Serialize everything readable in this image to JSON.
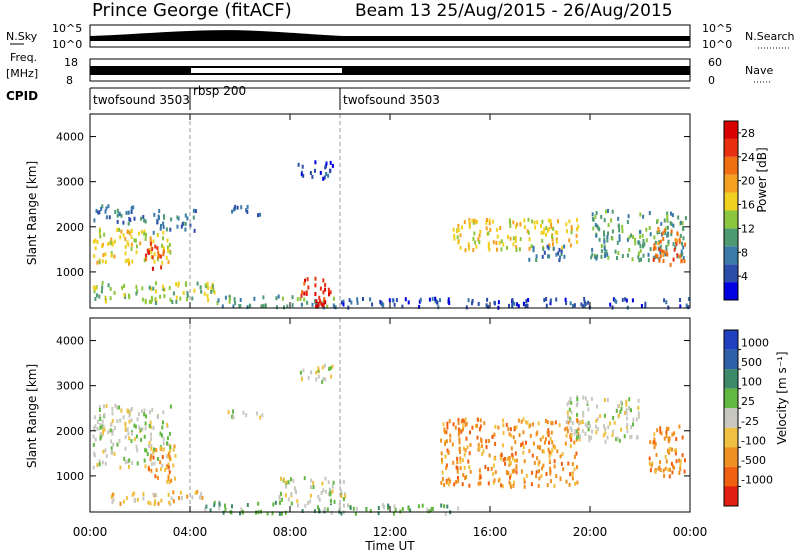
{
  "header": {
    "station": "Prince George (fitACF)",
    "beam_info": "Beam 13 25/Aug/2015 - 26/Aug/2015"
  },
  "panels": {
    "noise": {
      "left_label": "N.Sky",
      "right_label": "N.Search",
      "left_ticks": [
        "10^5",
        "10^0"
      ],
      "right_ticks": [
        "10^5",
        "10^0"
      ]
    },
    "freq": {
      "left_label_1": "Freq.",
      "left_label_2": "[MHz]",
      "right_label": "Nave",
      "left_ticks": [
        "18",
        "8"
      ],
      "right_ticks": [
        "60",
        "0"
      ]
    },
    "cpid": {
      "label": "CPID",
      "segments": [
        {
          "name": "twofsound 3503",
          "start_hr": 0,
          "end_hr": 4
        },
        {
          "name": "rbsp 200",
          "start_hr": 4,
          "end_hr": 10
        },
        {
          "name": "twofsound 3503",
          "start_hr": 10,
          "end_hr": 24
        }
      ]
    },
    "power": {
      "ylabel": "Slant Range [km]",
      "yticks": [
        "1000",
        "2000",
        "3000",
        "4000"
      ],
      "colorbar_label": "Power [dB]",
      "colorbar_ticks": [
        "4",
        "8",
        "12",
        "16",
        "20",
        "24",
        "28"
      ],
      "colors": [
        "#0000e0",
        "#2d4ea8",
        "#3a7aa8",
        "#4e9a72",
        "#8cc63e",
        "#f0d020",
        "#f5a020",
        "#f07010",
        "#e83010",
        "#d80000"
      ]
    },
    "velocity": {
      "ylabel": "Slant Range [km]",
      "yticks": [
        "1000",
        "2000",
        "3000",
        "4000"
      ],
      "colorbar_label": "Velocity [m s⁻¹]",
      "colorbar_ticks": [
        "1000",
        "500",
        "100",
        "25",
        "-25",
        "-100",
        "-500",
        "-1000"
      ],
      "colors": [
        "#2040c0",
        "#2d60a8",
        "#3d8a6a",
        "#62b840",
        "#c8c8c0",
        "#f0c040",
        "#f09020",
        "#f06010",
        "#e02010"
      ]
    }
  },
  "xaxis": {
    "label": "Time UT",
    "ticks": [
      "00:00",
      "04:00",
      "08:00",
      "12:00",
      "16:00",
      "20:00",
      "00:00"
    ]
  },
  "chart_data": {
    "type": "heatmap",
    "x_range_hours": [
      0,
      24
    ],
    "y_range_km": [
      200,
      4500
    ],
    "vertical_markers_hr": [
      4,
      10
    ],
    "power_regions": [
      {
        "t0": 0.1,
        "t1": 3.2,
        "r0": 1200,
        "r1": 2000,
        "level": 5
      },
      {
        "t0": 2.2,
        "t1": 3.0,
        "r0": 1100,
        "r1": 1700,
        "level": 8
      },
      {
        "t0": 0.1,
        "t1": 2.2,
        "r0": 2100,
        "r1": 2500,
        "level": 2
      },
      {
        "t0": 2.5,
        "t1": 4.2,
        "r0": 1900,
        "r1": 2400,
        "level": 2
      },
      {
        "t0": 5.5,
        "t1": 7.0,
        "r0": 2300,
        "r1": 2500,
        "level": 2
      },
      {
        "t0": 8.3,
        "t1": 9.7,
        "r0": 3100,
        "r1": 3500,
        "level": 1
      },
      {
        "t0": 0.1,
        "t1": 5.0,
        "r0": 350,
        "r1": 800,
        "level": 4
      },
      {
        "t0": 5.0,
        "t1": 10.2,
        "r0": 250,
        "r1": 500,
        "level": 3
      },
      {
        "t0": 8.4,
        "t1": 9.6,
        "r0": 400,
        "r1": 950,
        "level": 8
      },
      {
        "t0": 9.0,
        "t1": 9.4,
        "r0": 250,
        "r1": 400,
        "level": 9
      },
      {
        "t0": 10.0,
        "t1": 24.0,
        "r0": 250,
        "r1": 450,
        "level": 1
      },
      {
        "t0": 14.5,
        "t1": 19.5,
        "r0": 1500,
        "r1": 2200,
        "level": 5
      },
      {
        "t0": 17.5,
        "t1": 19.0,
        "r0": 1300,
        "r1": 1700,
        "level": 2
      },
      {
        "t0": 20.0,
        "t1": 23.8,
        "r0": 1300,
        "r1": 2400,
        "level": 3
      },
      {
        "t0": 22.5,
        "t1": 23.8,
        "r0": 1200,
        "r1": 2000,
        "level": 7
      }
    ],
    "velocity_regions": [
      {
        "t0": 0.1,
        "t1": 3.2,
        "r0": 1200,
        "r1": 2600,
        "level": 4
      },
      {
        "t0": 2.2,
        "t1": 3.4,
        "r0": 900,
        "r1": 1700,
        "level": 6
      },
      {
        "t0": 5.5,
        "t1": 7.0,
        "r0": 2300,
        "r1": 2500,
        "level": 4
      },
      {
        "t0": 8.3,
        "t1": 9.7,
        "r0": 3100,
        "r1": 3500,
        "level": 4
      },
      {
        "t0": 0.8,
        "t1": 4.5,
        "r0": 400,
        "r1": 700,
        "level": 5
      },
      {
        "t0": 4.5,
        "t1": 10.5,
        "r0": 200,
        "r1": 450,
        "level": 3
      },
      {
        "t0": 7.5,
        "t1": 10.2,
        "r0": 450,
        "r1": 1000,
        "level": 4
      },
      {
        "t0": 10.5,
        "t1": 15.0,
        "r0": 200,
        "r1": 400,
        "level": 3
      },
      {
        "t0": 14.0,
        "t1": 19.5,
        "r0": 800,
        "r1": 2300,
        "level": 6
      },
      {
        "t0": 19.0,
        "t1": 22.0,
        "r0": 1800,
        "r1": 2800,
        "level": 4
      },
      {
        "t0": 22.3,
        "t1": 23.8,
        "r0": 1000,
        "r1": 2200,
        "level": 6
      }
    ]
  }
}
